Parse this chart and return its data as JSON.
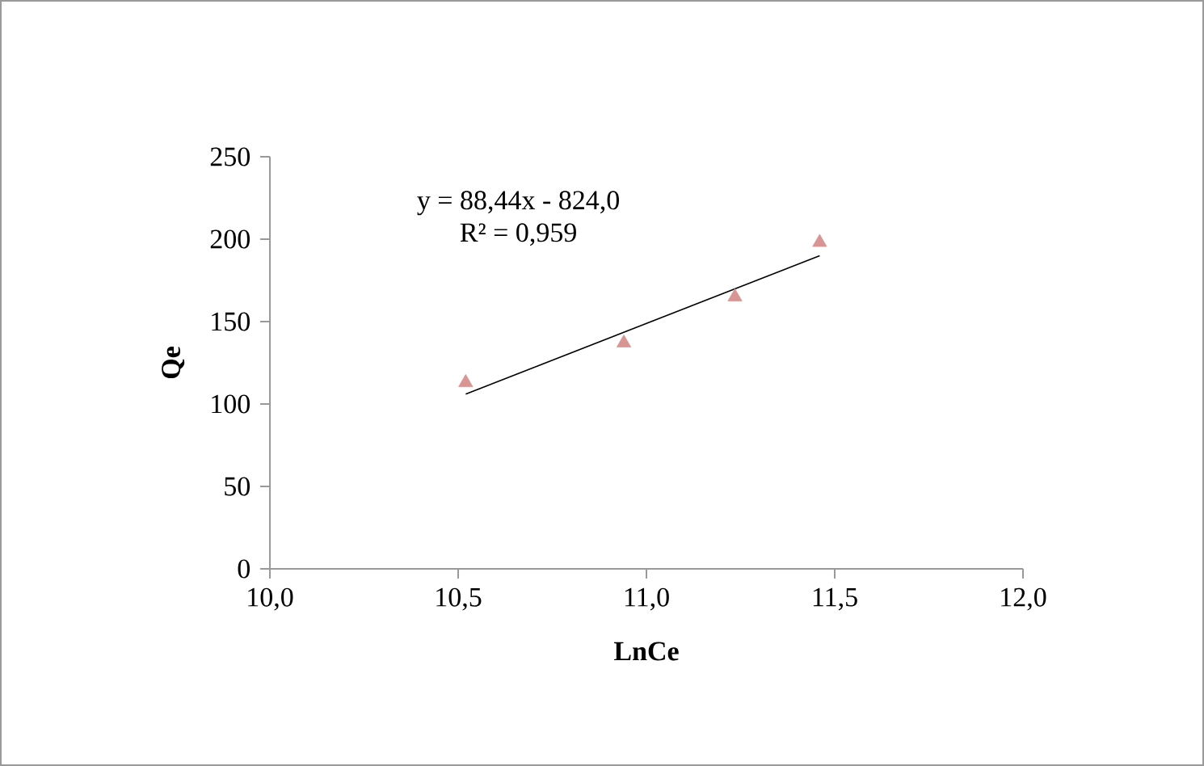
{
  "chart_data": {
    "type": "scatter",
    "xlabel": "LnCe",
    "ylabel": "Qe",
    "xlim": [
      10,
      12
    ],
    "ylim": [
      0,
      250
    ],
    "xticks": [
      {
        "value": 10,
        "label": "10,0"
      },
      {
        "value": 10.5,
        "label": "10,5"
      },
      {
        "value": 11,
        "label": "11,0"
      },
      {
        "value": 11.5,
        "label": "11,5"
      },
      {
        "value": 12,
        "label": "12,0"
      }
    ],
    "yticks": [
      0,
      50,
      100,
      150,
      200,
      250
    ],
    "series": [
      {
        "type": "scatter",
        "color": "#d99594",
        "marker": "triangle",
        "x": [
          10.52,
          10.94,
          11.235,
          11.46
        ],
        "values": [
          113,
          137,
          165,
          198
        ]
      },
      {
        "type": "line",
        "color": "#000000",
        "marker": "none",
        "line_style": "solid",
        "x": [
          10.52,
          11.46
        ],
        "values": [
          106,
          190
        ]
      }
    ],
    "annotations": [
      "y = 88,44x - 824,0",
      "R² = 0,959"
    ],
    "grid": false
  }
}
